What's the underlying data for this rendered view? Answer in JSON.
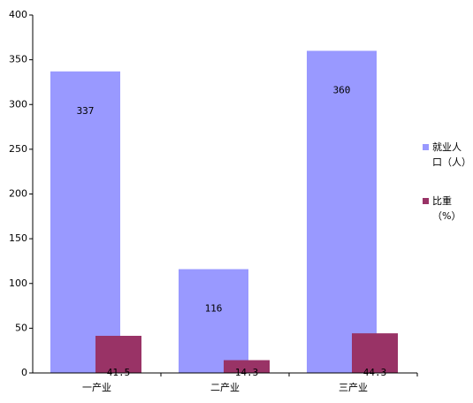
{
  "chart_data": {
    "type": "bar",
    "categories": [
      "一产业",
      "二产业",
      "三产业"
    ],
    "series": [
      {
        "name": "就业人口（人）",
        "color": "#9999ff",
        "values": [
          337,
          116,
          360
        ]
      },
      {
        "name": "比重（%）",
        "color": "#993366",
        "values": [
          41.5,
          14.3,
          44.3
        ]
      }
    ],
    "ylim": [
      0,
      400
    ],
    "yticks": [
      0,
      50,
      100,
      150,
      200,
      250,
      300,
      350,
      400
    ],
    "grid": false,
    "legend": "right"
  }
}
